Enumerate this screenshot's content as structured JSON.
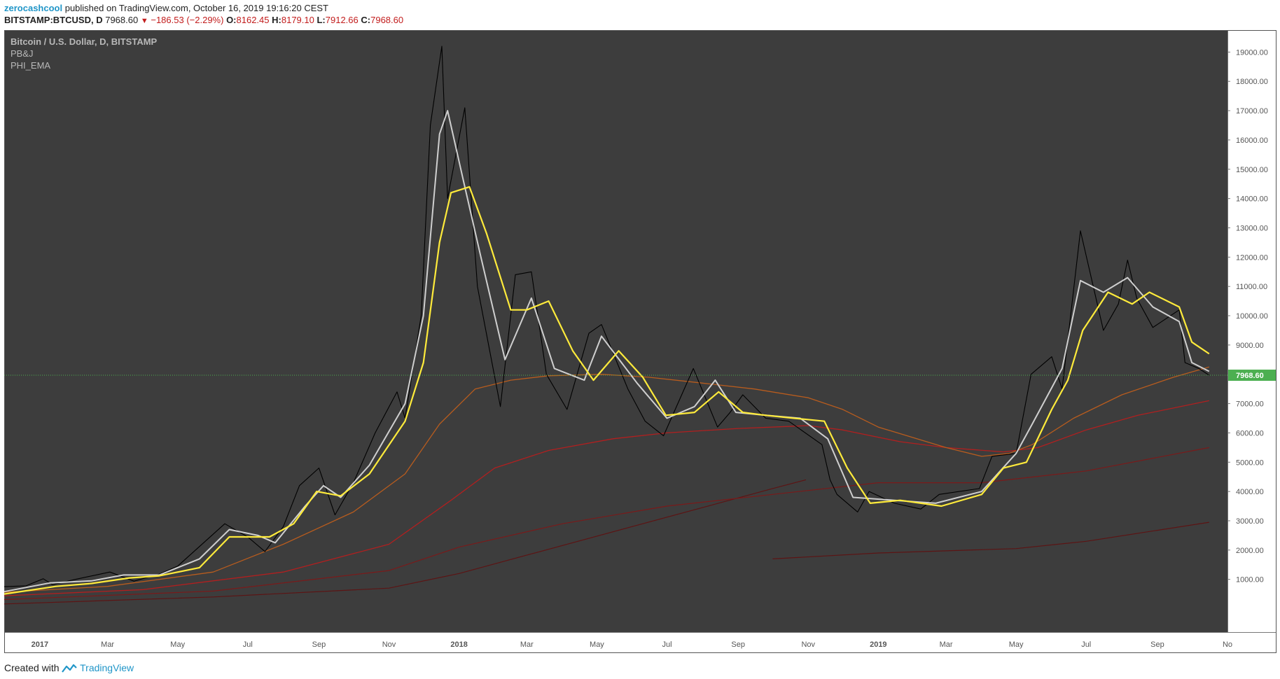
{
  "header": {
    "author": "zerocashcool",
    "published_text": "published on TradingView.com, October 16, 2019 19:16:20 CEST",
    "symbol": "BITSTAMP:BTCUSD, D",
    "last": "7968.60",
    "change": "−186.53 (−2.29%)",
    "ohlc": [
      {
        "k": "O:",
        "v": "8162.45"
      },
      {
        "k": "H:",
        "v": "8179.10"
      },
      {
        "k": "L:",
        "v": "7912.66"
      },
      {
        "k": "C:",
        "v": "7968.60"
      }
    ]
  },
  "legend": [
    "Bitcoin / U.S. Dollar, D, BITSTAMP",
    "PB&J",
    "PHI_EMA"
  ],
  "footer": {
    "created_with": "Created with",
    "brand": "TradingView"
  },
  "colors": {
    "background": "#3d3d3d",
    "price": "#000000",
    "fast_ma": "#cfcfcf",
    "slow_ma": "#ffeb3b",
    "ema_orange": "#b85c1e",
    "ema_red": "#b21f1f",
    "ema_darkred": "#7a1a1a",
    "ema_maroon": "#5c1414",
    "last_price": "#4caf50"
  },
  "chart_data": {
    "type": "line",
    "title": "Bitcoin / U.S. Dollar, D, BITSTAMP",
    "x_tick_labels": [
      "2017",
      "Mar",
      "May",
      "Jul",
      "Sep",
      "Nov",
      "2018",
      "Mar",
      "May",
      "Jul",
      "Sep",
      "Nov",
      "2019",
      "Mar",
      "May",
      "Jul",
      "Sep",
      "No"
    ],
    "y_tick_labels": [
      "1000.00",
      "2000.00",
      "3000.00",
      "4000.00",
      "5000.00",
      "6000.00",
      "7000.00",
      "8000.00",
      "9000.00",
      "10000.00",
      "11000.00",
      "12000.00",
      "13000.00",
      "14000.00",
      "15000.00",
      "16000.00",
      "17000.00",
      "18000.00",
      "19000.00"
    ],
    "ylim": [
      -800,
      19750
    ],
    "last_price": 7968.6,
    "last_price_label": "7968.60",
    "series": [
      {
        "key": "price",
        "x": [
          "2016-12-01",
          "2016-12-20",
          "2017-01-04",
          "2017-01-12",
          "2017-02-01",
          "2017-03-03",
          "2017-03-24",
          "2017-04-15",
          "2017-05-01",
          "2017-05-25",
          "2017-06-11",
          "2017-07-01",
          "2017-07-16",
          "2017-08-01",
          "2017-08-15",
          "2017-09-01",
          "2017-09-15",
          "2017-10-01",
          "2017-10-20",
          "2017-11-08",
          "2017-11-15",
          "2017-11-29",
          "2017-12-07",
          "2017-12-17",
          "2017-12-22",
          "2018-01-06",
          "2018-01-17",
          "2018-02-06",
          "2018-02-19",
          "2018-03-05",
          "2018-03-18",
          "2018-04-05",
          "2018-04-24",
          "2018-05-05",
          "2018-05-28",
          "2018-06-12",
          "2018-06-28",
          "2018-07-24",
          "2018-08-14",
          "2018-08-25",
          "2018-09-05",
          "2018-09-25",
          "2018-10-15",
          "2018-11-13",
          "2018-11-20",
          "2018-11-26",
          "2018-12-14",
          "2018-12-24",
          "2019-01-15",
          "2019-02-07",
          "2019-02-23",
          "2019-03-30",
          "2019-04-10",
          "2019-05-01",
          "2019-05-14",
          "2019-06-01",
          "2019-06-10",
          "2019-06-26",
          "2019-07-16",
          "2019-07-29",
          "2019-08-06",
          "2019-08-14",
          "2019-08-28",
          "2019-09-20",
          "2019-09-25",
          "2019-10-07",
          "2019-10-16"
        ],
        "y": [
          750,
          780,
          1020,
          820,
          1000,
          1250,
          940,
          1180,
          1450,
          2300,
          2900,
          2450,
          1950,
          2800,
          4200,
          4800,
          3200,
          4300,
          6000,
          7400,
          6500,
          10000,
          16500,
          19200,
          14000,
          17100,
          11000,
          6900,
          11400,
          11500,
          8000,
          6800,
          9400,
          9700,
          7500,
          6400,
          5900,
          8200,
          6200,
          6700,
          7300,
          6500,
          6400,
          5600,
          4400,
          3900,
          3300,
          4000,
          3600,
          3400,
          3900,
          4100,
          5200,
          5300,
          8000,
          8600,
          7500,
          12900,
          9500,
          10400,
          11900,
          10600,
          9600,
          10200,
          8400,
          8200,
          7968.6
        ]
      },
      {
        "key": "fast_ma",
        "x": [
          "2016-12-01",
          "2017-01-10",
          "2017-02-15",
          "2017-03-15",
          "2017-04-15",
          "2017-05-20",
          "2017-06-15",
          "2017-07-10",
          "2017-07-25",
          "2017-08-20",
          "2017-09-05",
          "2017-09-20",
          "2017-10-15",
          "2017-11-15",
          "2017-12-01",
          "2017-12-15",
          "2017-12-22",
          "2018-01-06",
          "2018-01-20",
          "2018-02-10",
          "2018-03-05",
          "2018-03-25",
          "2018-04-20",
          "2018-05-05",
          "2018-06-05",
          "2018-07-01",
          "2018-07-25",
          "2018-08-12",
          "2018-08-30",
          "2018-09-25",
          "2018-10-25",
          "2018-11-18",
          "2018-12-10",
          "2019-01-15",
          "2019-02-20",
          "2019-04-01",
          "2019-05-01",
          "2019-05-15",
          "2019-06-10",
          "2019-06-26",
          "2019-07-16",
          "2019-08-06",
          "2019-08-28",
          "2019-09-20",
          "2019-10-01",
          "2019-10-16"
        ],
        "y": [
          580,
          880,
          950,
          1150,
          1150,
          1700,
          2700,
          2500,
          2250,
          3500,
          4200,
          3800,
          4900,
          7000,
          10000,
          16200,
          17000,
          14400,
          12000,
          8500,
          10600,
          8200,
          7800,
          9300,
          7700,
          6500,
          6900,
          7800,
          6700,
          6600,
          6500,
          5800,
          3800,
          3700,
          3600,
          4000,
          5300,
          6300,
          8200,
          11200,
          10800,
          11300,
          10300,
          9800,
          8400,
          8100
        ]
      },
      {
        "key": "slow_ma",
        "x": [
          "2016-12-01",
          "2017-01-15",
          "2017-02-15",
          "2017-03-20",
          "2017-04-15",
          "2017-05-20",
          "2017-06-15",
          "2017-07-20",
          "2017-08-10",
          "2017-08-30",
          "2017-09-20",
          "2017-10-15",
          "2017-11-15",
          "2017-12-01",
          "2017-12-15",
          "2017-12-25",
          "2018-01-10",
          "2018-01-25",
          "2018-02-15",
          "2018-03-01",
          "2018-03-20",
          "2018-04-10",
          "2018-04-28",
          "2018-05-20",
          "2018-06-10",
          "2018-06-30",
          "2018-07-25",
          "2018-08-15",
          "2018-09-05",
          "2018-09-25",
          "2018-10-20",
          "2018-11-15",
          "2018-12-05",
          "2018-12-25",
          "2019-01-20",
          "2019-02-25",
          "2019-04-01",
          "2019-04-20",
          "2019-05-10",
          "2019-06-01",
          "2019-06-15",
          "2019-06-28",
          "2019-07-20",
          "2019-08-10",
          "2019-08-25",
          "2019-09-20",
          "2019-10-01",
          "2019-10-16"
        ],
        "y": [
          500,
          760,
          860,
          1050,
          1120,
          1400,
          2450,
          2450,
          2900,
          4000,
          3850,
          4600,
          6400,
          8400,
          12500,
          14200,
          14400,
          12800,
          10200,
          10200,
          10500,
          8800,
          7800,
          8800,
          7900,
          6600,
          6700,
          7400,
          6700,
          6600,
          6500,
          6400,
          4800,
          3600,
          3700,
          3500,
          3900,
          4800,
          5000,
          6800,
          7800,
          9500,
          10800,
          10400,
          10800,
          10300,
          9100,
          8700
        ]
      },
      {
        "key": "ema_orange",
        "x": [
          "2016-12-01",
          "2017-03-01",
          "2017-06-01",
          "2017-08-01",
          "2017-10-01",
          "2017-11-15",
          "2017-12-15",
          "2018-01-15",
          "2018-02-15",
          "2018-03-20",
          "2018-05-05",
          "2018-06-15",
          "2018-08-01",
          "2018-09-15",
          "2018-11-01",
          "2018-12-01",
          "2019-01-01",
          "2019-03-01",
          "2019-04-01",
          "2019-04-25",
          "2019-05-15",
          "2019-06-20",
          "2019-08-01",
          "2019-09-15",
          "2019-10-16"
        ],
        "y": [
          560,
          760,
          1250,
          2200,
          3300,
          4600,
          6300,
          7500,
          7800,
          7950,
          8000,
          7900,
          7700,
          7500,
          7200,
          6800,
          6200,
          5500,
          5200,
          5300,
          5600,
          6500,
          7300,
          7900,
          8250
        ]
      },
      {
        "key": "ema_red",
        "x": [
          "2016-12-01",
          "2017-04-01",
          "2017-08-01",
          "2017-11-01",
          "2017-12-25",
          "2018-02-01",
          "2018-03-20",
          "2018-05-15",
          "2018-07-01",
          "2018-09-01",
          "2018-11-01",
          "2018-12-01",
          "2019-01-20",
          "2019-03-01",
          "2019-04-20",
          "2019-05-20",
          "2019-07-01",
          "2019-08-15",
          "2019-10-16"
        ],
        "y": [
          440,
          650,
          1250,
          2200,
          3700,
          4800,
          5400,
          5800,
          6000,
          6150,
          6250,
          6100,
          5700,
          5500,
          5350,
          5500,
          6100,
          6600,
          7100
        ]
      },
      {
        "key": "ema_darkred",
        "x": [
          "2016-12-01",
          "2017-06-01",
          "2017-11-01",
          "2018-01-01",
          "2018-04-01",
          "2018-07-01",
          "2018-10-01",
          "2019-01-01",
          "2019-04-01",
          "2019-07-01",
          "2019-10-16"
        ],
        "y": [
          310,
          600,
          1300,
          2100,
          2900,
          3500,
          3900,
          4300,
          4300,
          4700,
          5500
        ]
      },
      {
        "key": "ema_maroon",
        "x": [
          "2016-12-01",
          "2017-06-01",
          "2017-11-01",
          "2018-01-01",
          "2018-10-01",
          "2018-10-30"
        ],
        "y": [
          160,
          400,
          700,
          1200,
          4100,
          4400
        ]
      },
      {
        "key": "ema_maroon2",
        "x": [
          "2018-10-01",
          "2019-01-01",
          "2019-05-01",
          "2019-07-01",
          "2019-10-16"
        ],
        "y": [
          1700,
          1900,
          2050,
          2300,
          2950
        ]
      }
    ]
  }
}
